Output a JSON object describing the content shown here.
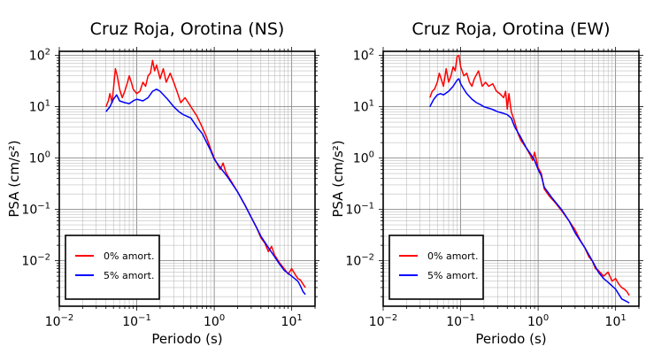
{
  "chart_data": [
    {
      "type": "line",
      "title": "Cruz Roja, Orotina (NS)",
      "xlabel": "Periodo (s)",
      "ylabel": "PSA (cm/s²)",
      "x_scale": "log",
      "y_scale": "log",
      "xlim": [
        0.01,
        20
      ],
      "ylim": [
        0.0013,
        120
      ],
      "x_ticks": [
        {
          "v": 0.01,
          "b": "10",
          "e": "−2"
        },
        {
          "v": 0.1,
          "b": "10",
          "e": "−1"
        },
        {
          "v": 1,
          "b": "10",
          "e": "0"
        },
        {
          "v": 10,
          "b": "10",
          "e": "1"
        }
      ],
      "y_ticks": [
        {
          "v": 0.01,
          "b": "10",
          "e": "−2"
        },
        {
          "v": 0.1,
          "b": "10",
          "e": "−1"
        },
        {
          "v": 1,
          "b": "10",
          "e": "0"
        },
        {
          "v": 10,
          "b": "10",
          "e": "1"
        },
        {
          "v": 100,
          "b": "10",
          "e": "2"
        }
      ],
      "grid": true,
      "legend_position": "bottom-left",
      "series": [
        {
          "name": "0% amort.",
          "color": "#ff0000",
          "points": [
            [
              0.04,
              10
            ],
            [
              0.043,
              13
            ],
            [
              0.045,
              18
            ],
            [
              0.048,
              12
            ],
            [
              0.05,
              22
            ],
            [
              0.053,
              55
            ],
            [
              0.056,
              40
            ],
            [
              0.06,
              22
            ],
            [
              0.065,
              15
            ],
            [
              0.07,
              20
            ],
            [
              0.075,
              28
            ],
            [
              0.08,
              40
            ],
            [
              0.085,
              30
            ],
            [
              0.09,
              22
            ],
            [
              0.1,
              18
            ],
            [
              0.11,
              20
            ],
            [
              0.12,
              30
            ],
            [
              0.13,
              25
            ],
            [
              0.14,
              40
            ],
            [
              0.15,
              45
            ],
            [
              0.16,
              80
            ],
            [
              0.17,
              50
            ],
            [
              0.18,
              65
            ],
            [
              0.2,
              35
            ],
            [
              0.22,
              55
            ],
            [
              0.24,
              30
            ],
            [
              0.27,
              45
            ],
            [
              0.3,
              30
            ],
            [
              0.33,
              20
            ],
            [
              0.37,
              12
            ],
            [
              0.42,
              15
            ],
            [
              0.5,
              10
            ],
            [
              0.6,
              6.5
            ],
            [
              0.7,
              4
            ],
            [
              0.8,
              2.5
            ],
            [
              0.9,
              1.5
            ],
            [
              1.0,
              1.0
            ],
            [
              1.1,
              0.75
            ],
            [
              1.2,
              0.6
            ],
            [
              1.3,
              0.8
            ],
            [
              1.4,
              0.55
            ],
            [
              1.5,
              0.45
            ],
            [
              1.7,
              0.33
            ],
            [
              2.0,
              0.22
            ],
            [
              2.5,
              0.12
            ],
            [
              3.0,
              0.07
            ],
            [
              3.5,
              0.045
            ],
            [
              4.0,
              0.028
            ],
            [
              4.5,
              0.022
            ],
            [
              5.0,
              0.015
            ],
            [
              5.5,
              0.019
            ],
            [
              6.0,
              0.013
            ],
            [
              7.0,
              0.009
            ],
            [
              8.0,
              0.007
            ],
            [
              9.0,
              0.0055
            ],
            [
              10.0,
              0.007
            ],
            [
              11.0,
              0.0055
            ],
            [
              12.0,
              0.0045
            ],
            [
              13.0,
              0.0042
            ],
            [
              14.0,
              0.0035
            ],
            [
              15.0,
              0.003
            ]
          ]
        },
        {
          "name": "5% amort.",
          "color": "#0000ff",
          "points": [
            [
              0.04,
              8
            ],
            [
              0.045,
              10
            ],
            [
              0.05,
              14
            ],
            [
              0.055,
              17
            ],
            [
              0.06,
              13
            ],
            [
              0.07,
              12
            ],
            [
              0.08,
              11.5
            ],
            [
              0.09,
              13
            ],
            [
              0.1,
              14
            ],
            [
              0.12,
              13
            ],
            [
              0.14,
              15
            ],
            [
              0.16,
              20
            ],
            [
              0.18,
              22
            ],
            [
              0.2,
              20
            ],
            [
              0.25,
              14
            ],
            [
              0.3,
              10
            ],
            [
              0.35,
              8
            ],
            [
              0.4,
              7
            ],
            [
              0.5,
              6
            ],
            [
              0.6,
              4
            ],
            [
              0.7,
              3
            ],
            [
              0.8,
              2
            ],
            [
              0.9,
              1.4
            ],
            [
              1.0,
              0.95
            ],
            [
              1.2,
              0.65
            ],
            [
              1.5,
              0.42
            ],
            [
              2.0,
              0.22
            ],
            [
              2.5,
              0.12
            ],
            [
              3.0,
              0.07
            ],
            [
              3.5,
              0.045
            ],
            [
              4.0,
              0.03
            ],
            [
              5.0,
              0.018
            ],
            [
              6.0,
              0.012
            ],
            [
              7.0,
              0.0085
            ],
            [
              8.0,
              0.0065
            ],
            [
              10.0,
              0.005
            ],
            [
              12.0,
              0.004
            ],
            [
              13.0,
              0.0032
            ],
            [
              14.0,
              0.0025
            ],
            [
              15.0,
              0.0022
            ]
          ]
        }
      ]
    },
    {
      "type": "line",
      "title": "Cruz Roja, Orotina (EW)",
      "xlabel": "Periodo (s)",
      "ylabel": "PSA (cm/s²)",
      "x_scale": "log",
      "y_scale": "log",
      "xlim": [
        0.01,
        20
      ],
      "ylim": [
        0.0013,
        120
      ],
      "x_ticks": [
        {
          "v": 0.01,
          "b": "10",
          "e": "−2"
        },
        {
          "v": 0.1,
          "b": "10",
          "e": "−1"
        },
        {
          "v": 1,
          "b": "10",
          "e": "0"
        },
        {
          "v": 10,
          "b": "10",
          "e": "1"
        }
      ],
      "y_ticks": [
        {
          "v": 0.01,
          "b": "10",
          "e": "−2"
        },
        {
          "v": 0.1,
          "b": "10",
          "e": "−1"
        },
        {
          "v": 1,
          "b": "10",
          "e": "0"
        },
        {
          "v": 10,
          "b": "10",
          "e": "1"
        },
        {
          "v": 100,
          "b": "10",
          "e": "2"
        }
      ],
      "grid": true,
      "legend_position": "bottom-left",
      "series": [
        {
          "name": "0% amort.",
          "color": "#ff0000",
          "points": [
            [
              0.04,
              15
            ],
            [
              0.043,
              20
            ],
            [
              0.046,
              22
            ],
            [
              0.05,
              30
            ],
            [
              0.053,
              45
            ],
            [
              0.056,
              35
            ],
            [
              0.06,
              25
            ],
            [
              0.065,
              55
            ],
            [
              0.07,
              30
            ],
            [
              0.075,
              40
            ],
            [
              0.08,
              60
            ],
            [
              0.085,
              50
            ],
            [
              0.09,
              95
            ],
            [
              0.095,
              100
            ],
            [
              0.1,
              60
            ],
            [
              0.11,
              40
            ],
            [
              0.12,
              45
            ],
            [
              0.13,
              30
            ],
            [
              0.14,
              25
            ],
            [
              0.15,
              35
            ],
            [
              0.17,
              50
            ],
            [
              0.19,
              25
            ],
            [
              0.21,
              30
            ],
            [
              0.23,
              25
            ],
            [
              0.26,
              28
            ],
            [
              0.29,
              20
            ],
            [
              0.32,
              18
            ],
            [
              0.36,
              15
            ],
            [
              0.38,
              20
            ],
            [
              0.4,
              9
            ],
            [
              0.42,
              18
            ],
            [
              0.45,
              8
            ],
            [
              0.5,
              5
            ],
            [
              0.55,
              3
            ],
            [
              0.6,
              2.2
            ],
            [
              0.7,
              1.6
            ],
            [
              0.8,
              1.1
            ],
            [
              0.85,
              0.9
            ],
            [
              0.9,
              1.3
            ],
            [
              1.0,
              0.65
            ],
            [
              1.1,
              0.5
            ],
            [
              1.2,
              0.25
            ],
            [
              1.4,
              0.18
            ],
            [
              1.7,
              0.13
            ],
            [
              2.0,
              0.095
            ],
            [
              2.5,
              0.06
            ],
            [
              3.0,
              0.04
            ],
            [
              3.5,
              0.025
            ],
            [
              4.0,
              0.018
            ],
            [
              4.5,
              0.012
            ],
            [
              5.0,
              0.01
            ],
            [
              5.5,
              0.007
            ],
            [
              6.0,
              0.0065
            ],
            [
              7.0,
              0.005
            ],
            [
              8.0,
              0.006
            ],
            [
              9.0,
              0.004
            ],
            [
              10.0,
              0.0045
            ],
            [
              11.0,
              0.0035
            ],
            [
              12.0,
              0.003
            ],
            [
              13.0,
              0.0028
            ],
            [
              14.0,
              0.0025
            ],
            [
              15.0,
              0.0021
            ]
          ]
        },
        {
          "name": "5% amort.",
          "color": "#0000ff",
          "points": [
            [
              0.04,
              10
            ],
            [
              0.045,
              14
            ],
            [
              0.05,
              17
            ],
            [
              0.055,
              18
            ],
            [
              0.06,
              17
            ],
            [
              0.07,
              20
            ],
            [
              0.08,
              25
            ],
            [
              0.09,
              33
            ],
            [
              0.095,
              35
            ],
            [
              0.1,
              28
            ],
            [
              0.11,
              22
            ],
            [
              0.12,
              18
            ],
            [
              0.14,
              14
            ],
            [
              0.16,
              12
            ],
            [
              0.18,
              11
            ],
            [
              0.2,
              10
            ],
            [
              0.25,
              9
            ],
            [
              0.3,
              8
            ],
            [
              0.35,
              7.5
            ],
            [
              0.4,
              7
            ],
            [
              0.45,
              6
            ],
            [
              0.5,
              4
            ],
            [
              0.6,
              2.5
            ],
            [
              0.7,
              1.6
            ],
            [
              0.8,
              1.2
            ],
            [
              0.9,
              0.9
            ],
            [
              1.0,
              0.6
            ],
            [
              1.1,
              0.45
            ],
            [
              1.2,
              0.27
            ],
            [
              1.5,
              0.17
            ],
            [
              2.0,
              0.1
            ],
            [
              2.5,
              0.06
            ],
            [
              3.0,
              0.035
            ],
            [
              4.0,
              0.018
            ],
            [
              5.0,
              0.01
            ],
            [
              6.0,
              0.006
            ],
            [
              7.0,
              0.0045
            ],
            [
              8.0,
              0.0038
            ],
            [
              10.0,
              0.0028
            ],
            [
              12.0,
              0.0018
            ],
            [
              14.0,
              0.0016
            ],
            [
              15.0,
              0.0015
            ]
          ]
        }
      ]
    }
  ]
}
